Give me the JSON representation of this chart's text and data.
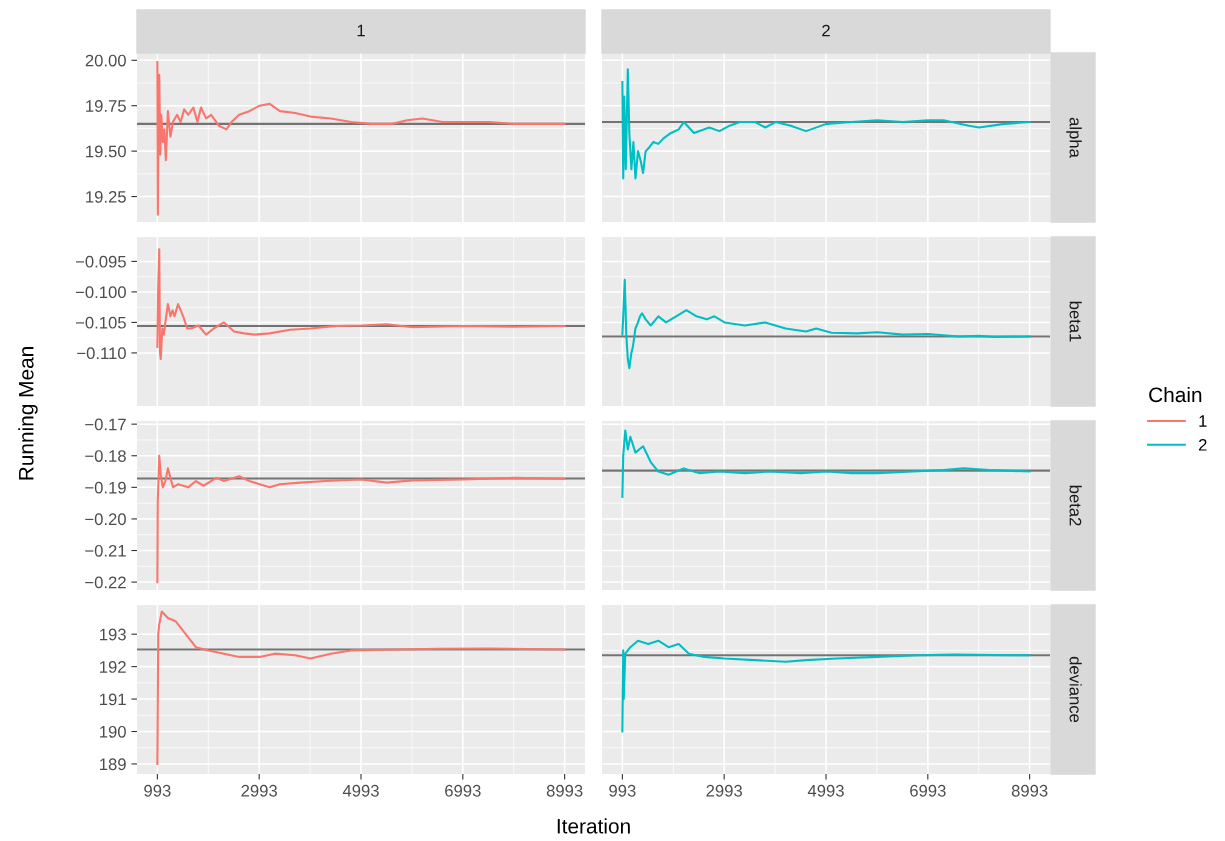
{
  "chart_data": [
    {
      "type": "line",
      "title": "1",
      "legend": "right",
      "legend_title": "Chain",
      "grid": true,
      "tick_labels": "y",
      "xlim": [
        593,
        9393
      ],
      "xticks": [
        993,
        2993,
        4993,
        6993,
        8993
      ],
      "ylim": [
        19.11,
        20.04
      ],
      "yticks": [
        {
          "value": 19.25,
          "label": "19.25"
        },
        {
          "value": 19.5,
          "label": "19.50"
        },
        {
          "value": 19.75,
          "label": "19.75"
        },
        {
          "value": 20.0,
          "label": "20.00"
        }
      ],
      "ref_lines": [
        {
          "axis": "y",
          "value": 19.65,
          "color": "#666666"
        }
      ],
      "series": [
        {
          "name": "1",
          "color": "#f8766d",
          "x": [
            993,
            1003,
            1013,
            1030,
            1050,
            1070,
            1100,
            1130,
            1160,
            1200,
            1250,
            1300,
            1380,
            1450,
            1520,
            1600,
            1700,
            1780,
            1850,
            1950,
            2050,
            2200,
            2350,
            2450,
            2600,
            2800,
            3000,
            3200,
            3400,
            3700,
            4000,
            4400,
            4800,
            5200,
            5600,
            5900,
            6200,
            6600,
            7000,
            7500,
            8000,
            8500,
            8993
          ],
          "values": [
            19.99,
            19.15,
            19.6,
            19.92,
            19.48,
            19.7,
            19.55,
            19.62,
            19.45,
            19.72,
            19.58,
            19.66,
            19.7,
            19.66,
            19.73,
            19.7,
            19.74,
            19.66,
            19.74,
            19.68,
            19.7,
            19.64,
            19.62,
            19.66,
            19.7,
            19.72,
            19.75,
            19.76,
            19.72,
            19.71,
            19.69,
            19.68,
            19.66,
            19.65,
            19.65,
            19.67,
            19.68,
            19.66,
            19.66,
            19.66,
            19.65,
            19.65,
            19.65
          ]
        }
      ]
    },
    {
      "type": "line",
      "title": "2",
      "y2label": "alpha",
      "legend": "right",
      "grid": true,
      "tick_labels": false,
      "xlim": [
        593,
        9393
      ],
      "xticks": [
        993,
        2993,
        4993,
        6993,
        8993
      ],
      "ylim": [
        19.11,
        20.04
      ],
      "yticks": [
        19.25,
        19.5,
        19.75,
        20.0
      ],
      "ref_lines": [
        {
          "axis": "y",
          "value": 19.66,
          "color": "#666666"
        }
      ],
      "series": [
        {
          "name": "2",
          "color": "#00bfc4",
          "x": [
            993,
            1010,
            1030,
            1060,
            1100,
            1130,
            1170,
            1210,
            1250,
            1300,
            1350,
            1400,
            1450,
            1520,
            1600,
            1700,
            1800,
            1950,
            2100,
            2200,
            2400,
            2700,
            2900,
            3100,
            3300,
            3600,
            3800,
            4000,
            4300,
            4600,
            5000,
            5500,
            6000,
            6500,
            7000,
            7300,
            7800,
            8000,
            8500,
            8993
          ],
          "values": [
            19.88,
            19.35,
            19.8,
            19.4,
            19.95,
            19.6,
            19.4,
            19.55,
            19.35,
            19.5,
            19.45,
            19.38,
            19.5,
            19.52,
            19.55,
            19.54,
            19.57,
            19.6,
            19.62,
            19.66,
            19.6,
            19.63,
            19.61,
            19.64,
            19.66,
            19.66,
            19.63,
            19.66,
            19.64,
            19.61,
            19.65,
            19.66,
            19.67,
            19.66,
            19.67,
            19.67,
            19.64,
            19.63,
            19.65,
            19.66
          ]
        }
      ]
    },
    {
      "type": "line",
      "ylabel": "Running Mean",
      "grid": true,
      "tick_labels": "y",
      "xlim": [
        593,
        9393
      ],
      "xticks": [
        993,
        2993,
        4993,
        6993,
        8993
      ],
      "ylim": [
        -0.1187,
        -0.091
      ],
      "yticks": [
        {
          "value": -0.11,
          "label": "−0.110"
        },
        {
          "value": -0.105,
          "label": "−0.105"
        },
        {
          "value": -0.1,
          "label": "−0.100"
        },
        {
          "value": -0.095,
          "label": "−0.095"
        }
      ],
      "ref_lines": [
        {
          "axis": "y",
          "value": -0.1056,
          "color": "#666666"
        }
      ],
      "series": [
        {
          "color": "#f8766d",
          "x": [
            993,
            1010,
            1030,
            1045,
            1060,
            1090,
            1120,
            1150,
            1200,
            1250,
            1290,
            1330,
            1400,
            1450,
            1500,
            1580,
            1650,
            1800,
            1950,
            2100,
            2300,
            2500,
            2700,
            2900,
            3200,
            3600,
            4000,
            4500,
            5000,
            5500,
            6000,
            7000,
            8000,
            8993
          ],
          "values": [
            -0.109,
            -0.099,
            -0.093,
            -0.11,
            -0.111,
            -0.106,
            -0.107,
            -0.105,
            -0.102,
            -0.104,
            -0.103,
            -0.104,
            -0.102,
            -0.103,
            -0.104,
            -0.106,
            -0.106,
            -0.1055,
            -0.107,
            -0.106,
            -0.105,
            -0.1065,
            -0.1068,
            -0.107,
            -0.1068,
            -0.1062,
            -0.106,
            -0.1056,
            -0.1055,
            -0.1053,
            -0.1058,
            -0.1056,
            -0.1057,
            -0.1056
          ]
        }
      ]
    },
    {
      "type": "line",
      "y2label": "beta1",
      "grid": true,
      "tick_labels": false,
      "xlim": [
        593,
        9393
      ],
      "xticks": [
        993,
        2993,
        4993,
        6993,
        8993
      ],
      "ylim": [
        -0.1187,
        -0.091
      ],
      "yticks": [
        -0.11,
        -0.105,
        -0.1,
        -0.095
      ],
      "ref_lines": [
        {
          "axis": "y",
          "value": -0.1073,
          "color": "#666666"
        }
      ],
      "series": [
        {
          "color": "#00bfc4",
          "x": [
            993,
            1010,
            1040,
            1070,
            1100,
            1130,
            1170,
            1200,
            1250,
            1300,
            1340,
            1380,
            1450,
            1550,
            1700,
            1850,
            2050,
            2250,
            2450,
            2650,
            2800,
            3000,
            3400,
            3800,
            4200,
            4600,
            4800,
            5100,
            5600,
            6000,
            6500,
            7000,
            7600,
            8000,
            8300,
            8993
          ],
          "values": [
            -0.107,
            -0.104,
            -0.098,
            -0.107,
            -0.111,
            -0.1125,
            -0.11,
            -0.109,
            -0.106,
            -0.105,
            -0.104,
            -0.1035,
            -0.1045,
            -0.1055,
            -0.104,
            -0.105,
            -0.104,
            -0.103,
            -0.104,
            -0.1045,
            -0.104,
            -0.105,
            -0.1055,
            -0.105,
            -0.106,
            -0.1065,
            -0.106,
            -0.1067,
            -0.1068,
            -0.1066,
            -0.107,
            -0.1069,
            -0.1073,
            -0.1072,
            -0.1074,
            -0.1073
          ]
        }
      ]
    },
    {
      "type": "line",
      "grid": true,
      "tick_labels": "y",
      "xlim": [
        593,
        9393
      ],
      "xticks": [
        993,
        2993,
        4993,
        6993,
        8993
      ],
      "ylim": [
        -0.2225,
        -0.169
      ],
      "yticks": [
        {
          "value": -0.22,
          "label": "−0.22"
        },
        {
          "value": -0.21,
          "label": "−0.21"
        },
        {
          "value": -0.2,
          "label": "−0.20"
        },
        {
          "value": -0.19,
          "label": "−0.19"
        },
        {
          "value": -0.18,
          "label": "−0.18"
        },
        {
          "value": -0.17,
          "label": "−0.17"
        }
      ],
      "ref_lines": [
        {
          "axis": "y",
          "value": -0.1872,
          "color": "#666666"
        }
      ],
      "series": [
        {
          "color": "#f8766d",
          "x": [
            993,
            1000,
            1010,
            1030,
            1060,
            1100,
            1150,
            1200,
            1250,
            1300,
            1400,
            1500,
            1600,
            1750,
            1900,
            2150,
            2300,
            2600,
            2800,
            3000,
            3200,
            3400,
            3800,
            4300,
            5000,
            5500,
            6000,
            7000,
            8000,
            8993
          ],
          "values": [
            -0.22,
            -0.195,
            -0.19,
            -0.18,
            -0.186,
            -0.19,
            -0.188,
            -0.184,
            -0.187,
            -0.19,
            -0.189,
            -0.1895,
            -0.19,
            -0.188,
            -0.1895,
            -0.187,
            -0.188,
            -0.1865,
            -0.188,
            -0.189,
            -0.19,
            -0.189,
            -0.1885,
            -0.188,
            -0.1875,
            -0.1885,
            -0.1878,
            -0.1875,
            -0.187,
            -0.1873
          ]
        }
      ]
    },
    {
      "type": "line",
      "y2label": "beta2",
      "grid": true,
      "tick_labels": false,
      "xlim": [
        593,
        9393
      ],
      "xticks": [
        993,
        2993,
        4993,
        6993,
        8993
      ],
      "ylim": [
        -0.2225,
        -0.169
      ],
      "yticks": [
        -0.22,
        -0.21,
        -0.2,
        -0.19,
        -0.18,
        -0.17
      ],
      "ref_lines": [
        {
          "axis": "y",
          "value": -0.1847,
          "color": "#666666"
        }
      ],
      "series": [
        {
          "color": "#00bfc4",
          "x": [
            993,
            1010,
            1050,
            1100,
            1150,
            1250,
            1400,
            1550,
            1700,
            1900,
            2200,
            2500,
            2900,
            3400,
            3900,
            4500,
            5000,
            5500,
            6000,
            6700,
            7300,
            7700,
            8200,
            8993
          ],
          "values": [
            -0.193,
            -0.18,
            -0.172,
            -0.178,
            -0.174,
            -0.179,
            -0.177,
            -0.182,
            -0.185,
            -0.186,
            -0.184,
            -0.1855,
            -0.185,
            -0.1855,
            -0.185,
            -0.1855,
            -0.185,
            -0.1855,
            -0.1855,
            -0.185,
            -0.1845,
            -0.184,
            -0.1845,
            -0.185
          ]
        }
      ]
    },
    {
      "type": "line",
      "xlabel": "Iteration",
      "grid": true,
      "xlim": [
        593,
        9393
      ],
      "xticks": [
        993,
        2993,
        4993,
        6993,
        8993
      ],
      "ylim": [
        188.69,
        193.9
      ],
      "yticks": [
        189,
        190,
        191,
        192,
        193
      ],
      "ref_lines": [
        {
          "axis": "y",
          "value": 192.53,
          "color": "#666666"
        }
      ],
      "series": [
        {
          "color": "#f8766d",
          "x": [
            993,
            1010,
            1030,
            1080,
            1200,
            1350,
            1550,
            1750,
            2000,
            2300,
            2600,
            3000,
            3300,
            3700,
            4000,
            4400,
            4800,
            5500,
            6500,
            7500,
            8993
          ],
          "values": [
            189.0,
            193.0,
            193.3,
            193.7,
            193.5,
            193.4,
            193.0,
            192.6,
            192.5,
            192.4,
            192.3,
            192.3,
            192.4,
            192.35,
            192.25,
            192.4,
            192.5,
            192.52,
            192.55,
            192.56,
            192.53
          ]
        }
      ]
    },
    {
      "type": "line",
      "y2label": "deviance",
      "grid": true,
      "tick_labels": "x",
      "xlim": [
        593,
        9393
      ],
      "xticks": [
        993,
        2993,
        4993,
        6993,
        8993
      ],
      "ylim": [
        188.69,
        193.9
      ],
      "yticks": [
        189,
        190,
        191,
        192,
        193
      ],
      "ref_lines": [
        {
          "axis": "y",
          "value": 192.35,
          "color": "#666666"
        }
      ],
      "series": [
        {
          "color": "#00bfc4",
          "x": [
            993,
            1010,
            1020,
            1050,
            1150,
            1300,
            1500,
            1700,
            1900,
            2100,
            2300,
            2600,
            3000,
            3600,
            4200,
            4600,
            5200,
            6000,
            6800,
            7500,
            8993
          ],
          "values": [
            190.0,
            192.5,
            191.0,
            192.4,
            192.6,
            192.8,
            192.7,
            192.8,
            192.6,
            192.7,
            192.4,
            192.3,
            192.25,
            192.2,
            192.15,
            192.2,
            192.25,
            192.3,
            192.35,
            192.37,
            192.35
          ]
        }
      ]
    }
  ]
}
